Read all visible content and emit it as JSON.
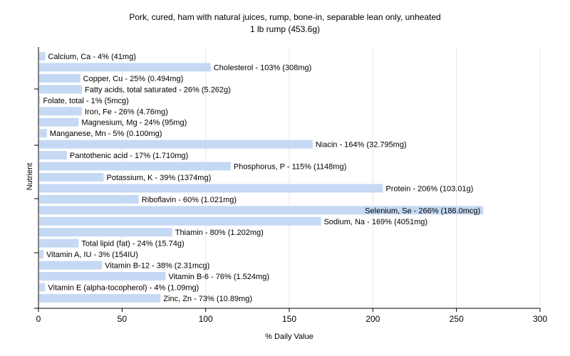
{
  "colors": {
    "bar": "#c5d9f5",
    "grid": "#e6e6e6",
    "axis": "#000000"
  },
  "chart_data": {
    "type": "bar",
    "orientation": "horizontal",
    "title": "Pork, cured, ham with natural juices, rump, bone-in, separable lean only, unheated",
    "subtitle": "1 lb rump (453.6g)",
    "xlabel": "% Daily Value",
    "ylabel": "Nutrient",
    "xlim": [
      0,
      300
    ],
    "xticks": [
      0,
      50,
      100,
      150,
      200,
      250,
      300
    ],
    "grid": "vertical",
    "categories": [
      "Calcium, Ca",
      "Cholesterol",
      "Copper, Cu",
      "Fatty acids, total saturated",
      "Folate, total",
      "Iron, Fe",
      "Magnesium, Mg",
      "Manganese, Mn",
      "Niacin",
      "Pantothenic acid",
      "Phosphorus, P",
      "Potassium, K",
      "Protein",
      "Riboflavin",
      "Selenium, Se",
      "Sodium, Na",
      "Thiamin",
      "Total lipid (fat)",
      "Vitamin A, IU",
      "Vitamin B-12",
      "Vitamin B-6",
      "Vitamin E (alpha-tocopherol)",
      "Zinc, Zn"
    ],
    "values": [
      4,
      103,
      25,
      26,
      1,
      26,
      24,
      5,
      164,
      17,
      115,
      39,
      206,
      60,
      266,
      169,
      80,
      24,
      3,
      38,
      76,
      4,
      73
    ],
    "labels": [
      "Calcium, Ca - 4% (41mg)",
      "Cholesterol - 103% (308mg)",
      "Copper, Cu - 25% (0.494mg)",
      "Fatty acids, total saturated - 26% (5.262g)",
      "Folate, total - 1% (5mcg)",
      "Iron, Fe - 26% (4.76mg)",
      "Magnesium, Mg - 24% (95mg)",
      "Manganese, Mn - 5% (0.100mg)",
      "Niacin - 164% (32.795mg)",
      "Pantothenic acid - 17% (1.710mg)",
      "Phosphorus, P - 115% (1148mg)",
      "Potassium, K - 39% (1374mg)",
      "Protein - 206% (103.01g)",
      "Riboflavin - 60% (1.021mg)",
      "Selenium, Se - 266% (186.0mcg)",
      "Sodium, Na - 169% (4051mg)",
      "Thiamin - 80% (1.202mg)",
      "Total lipid (fat) - 24% (15.74g)",
      "Vitamin A, IU - 3% (154IU)",
      "Vitamin B-12 - 38% (2.31mcg)",
      "Vitamin B-6 - 76% (1.524mg)",
      "Vitamin E (alpha-tocopherol) - 4% (1.09mg)",
      "Zinc, Zn - 73% (10.89mg)"
    ]
  }
}
